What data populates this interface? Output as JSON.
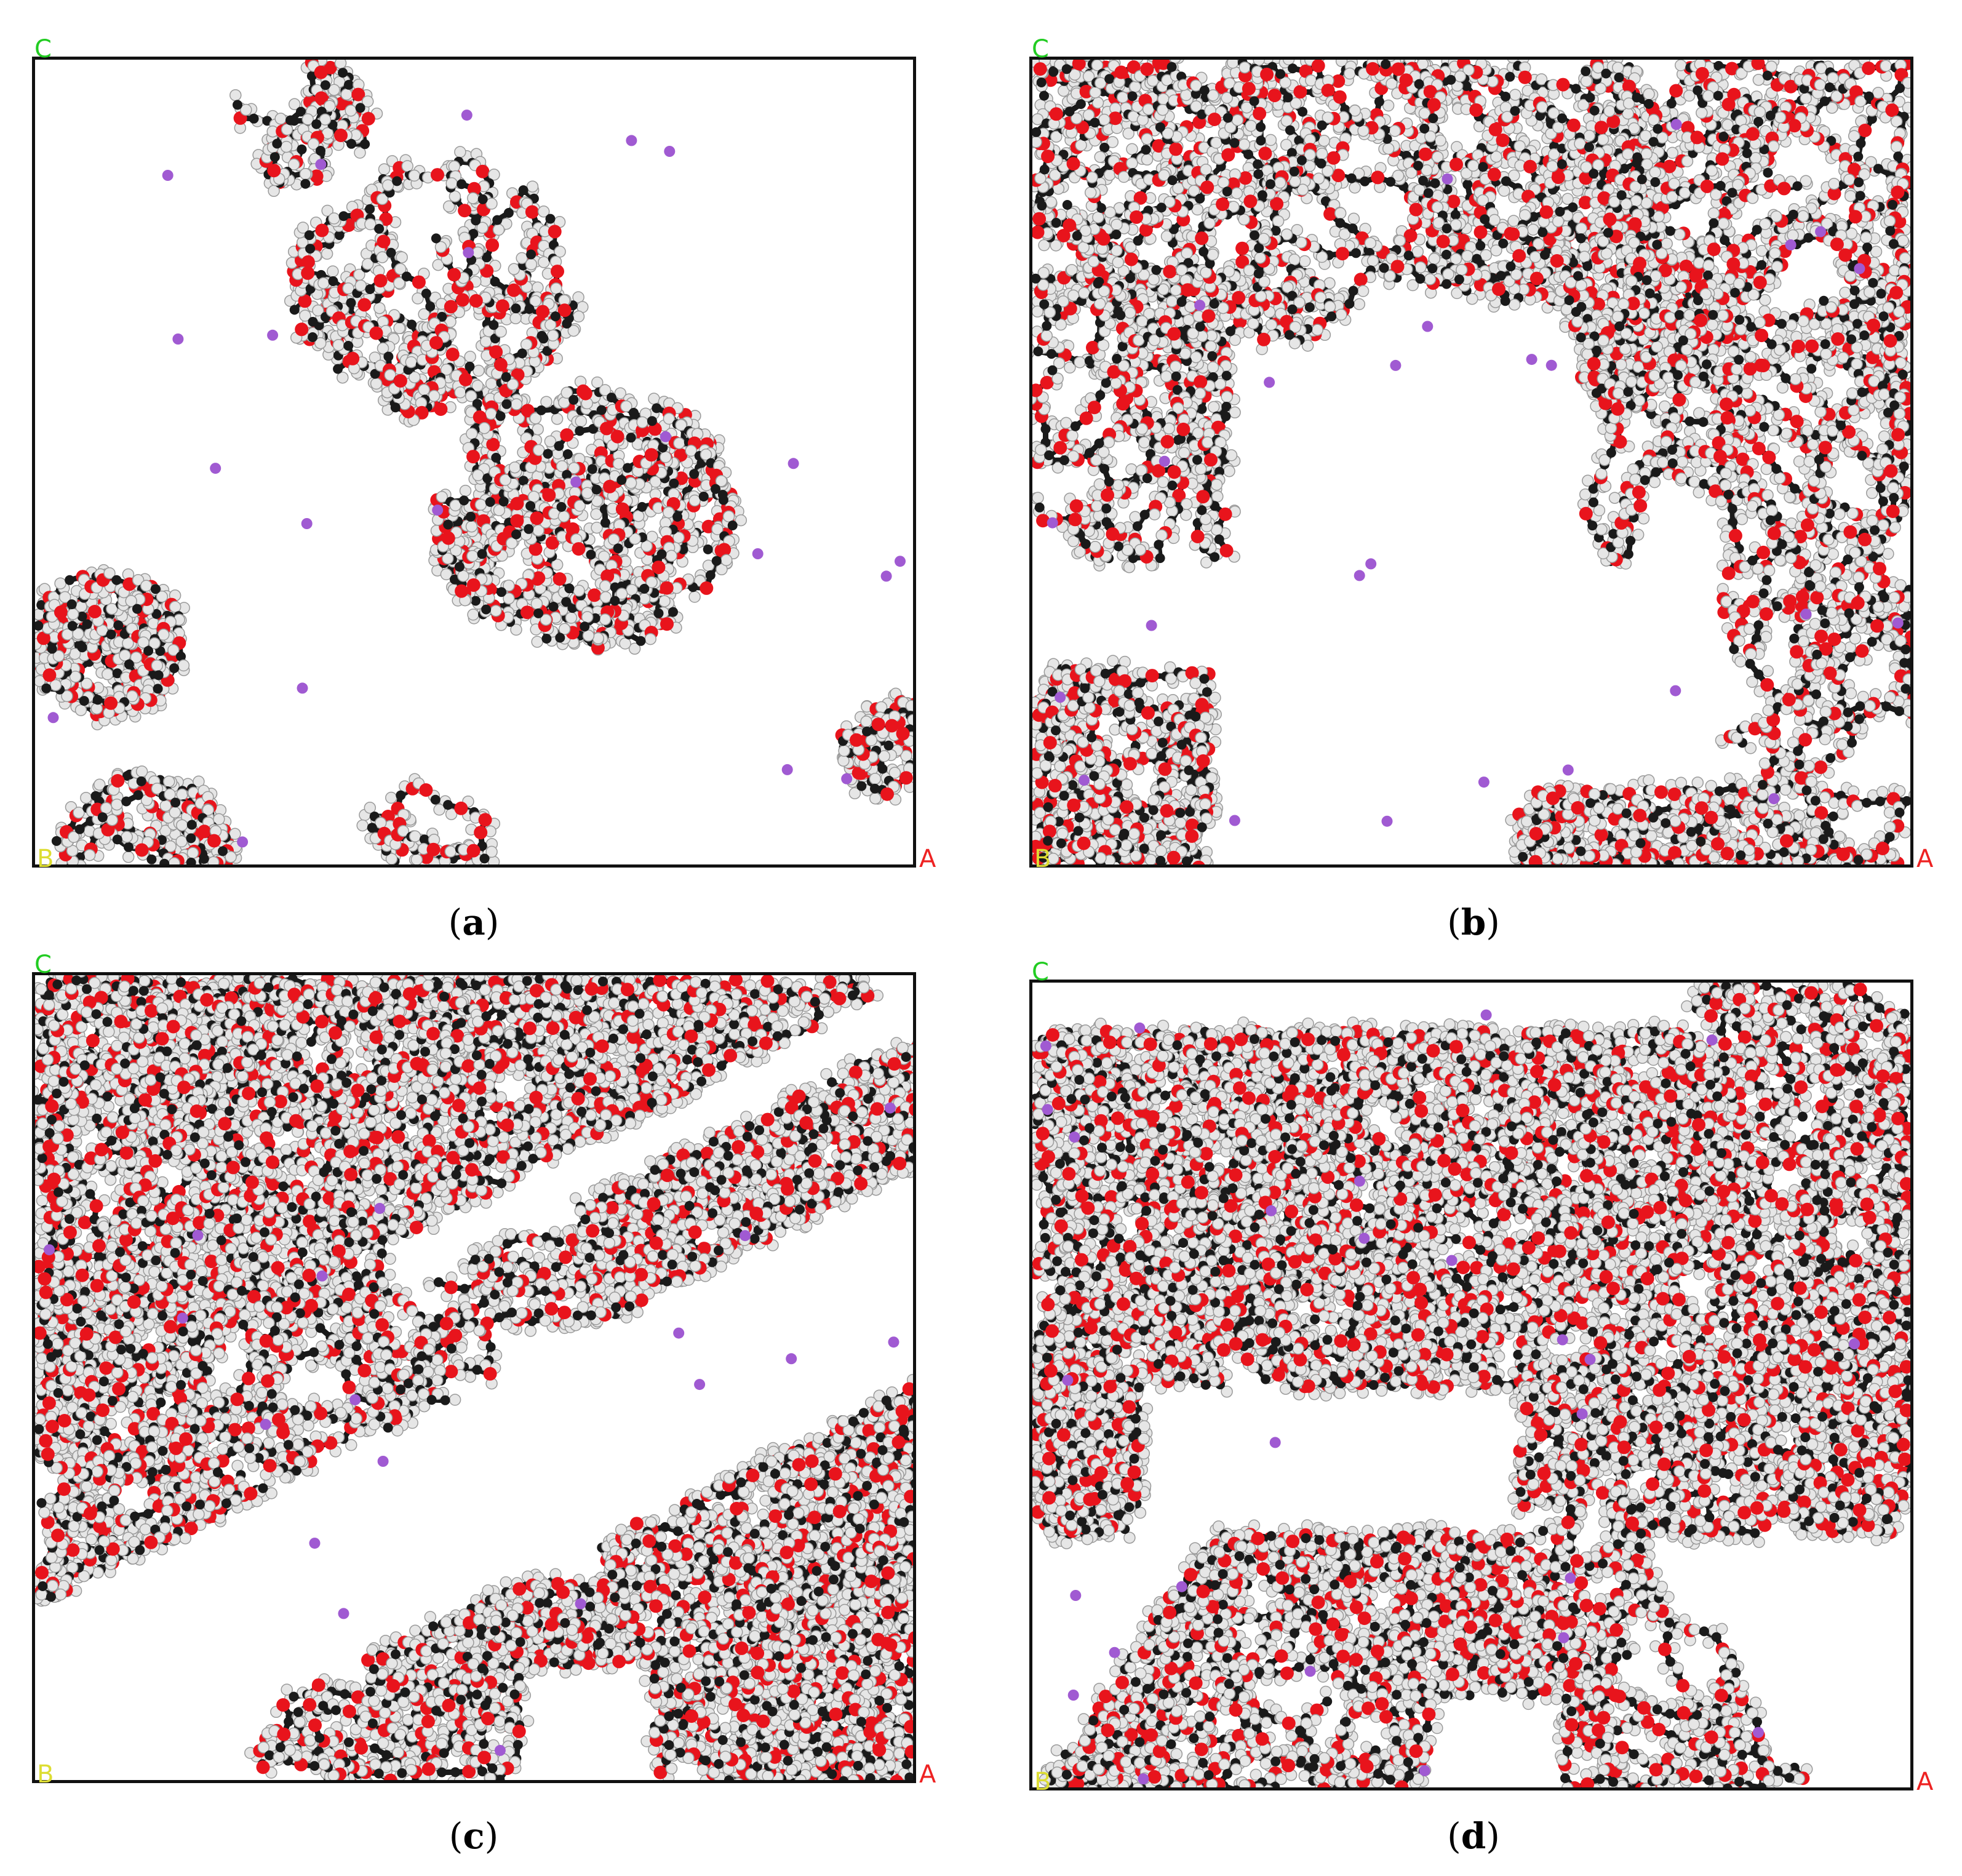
{
  "panels": [
    {
      "caption_letter": "a",
      "axis_c": "C",
      "axis_a": "A",
      "axis_b": "B",
      "density": "sparse"
    },
    {
      "caption_letter": "b",
      "axis_c": "C",
      "axis_a": "A",
      "axis_b": "B",
      "density": "medium"
    },
    {
      "caption_letter": "c",
      "axis_c": "C",
      "axis_a": "A",
      "axis_b": "B",
      "density": "dense-diagonal"
    },
    {
      "caption_letter": "d",
      "axis_c": "C",
      "axis_a": "A",
      "axis_b": "B",
      "density": "dense-band"
    }
  ],
  "colors": {
    "carbon": "#1a1a1a",
    "oxygen": "#e8141c",
    "hydrogen": "#e6e6e6",
    "lithium": "#a05ad2",
    "axis_c": "#22cc22",
    "axis_a": "#ee2222",
    "axis_b": "#dddd33"
  }
}
